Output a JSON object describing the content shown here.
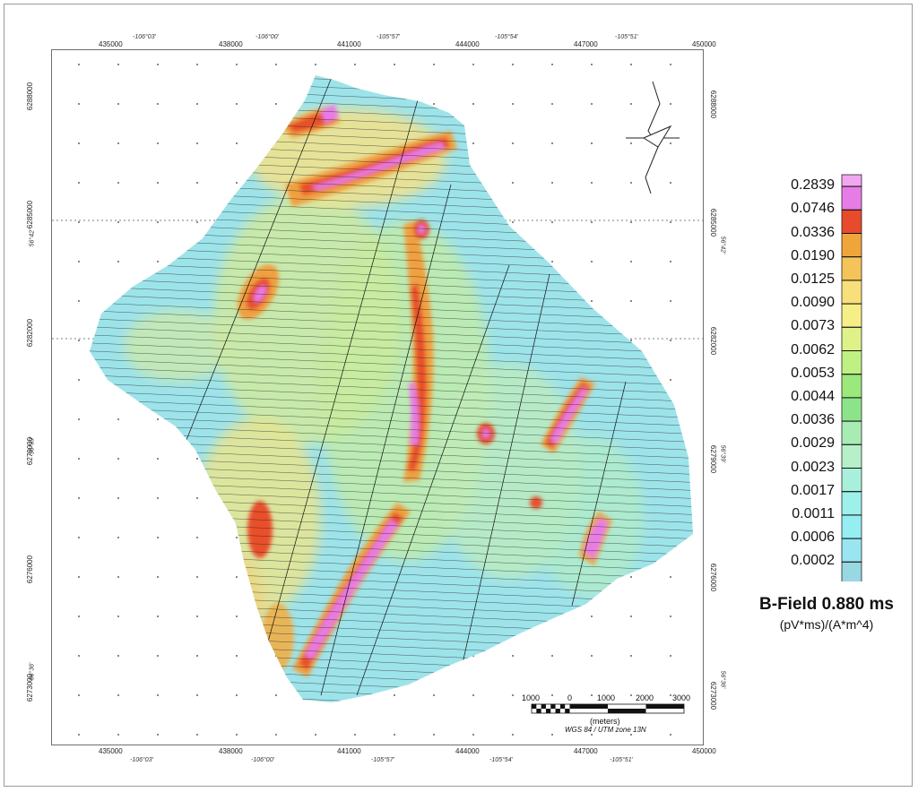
{
  "frame": {
    "background": "#ffffff"
  },
  "axes": {
    "utm_easting": [
      "435000",
      "438000",
      "441000",
      "444000",
      "447000",
      "450000"
    ],
    "longitude": [
      "-106°03'",
      "-106°00'",
      "-105°57'",
      "-105°54'",
      "-105°51'"
    ],
    "utm_northing": [
      "6288000",
      "6285000",
      "6282000",
      "6279000",
      "6276000",
      "6273000"
    ],
    "latitude": [
      "56°42'",
      "56°39'",
      "56°36'"
    ]
  },
  "legend": {
    "title": "B-Field 0.880 ms",
    "units": "(pV*ms)/(A*m^4)",
    "classes": [
      {
        "label": "0.2839",
        "color": "#e87ce6"
      },
      {
        "label": "0.0746",
        "color": "#e84a2c"
      },
      {
        "label": "0.0336",
        "color": "#f0a53a"
      },
      {
        "label": "0.0190",
        "color": "#f5c458"
      },
      {
        "label": "0.0125",
        "color": "#f8df7a"
      },
      {
        "label": "0.0090",
        "color": "#f5ef86"
      },
      {
        "label": "0.0073",
        "color": "#dff28a"
      },
      {
        "label": "0.0062",
        "color": "#bff084"
      },
      {
        "label": "0.0053",
        "color": "#9be87c"
      },
      {
        "label": "0.0044",
        "color": "#8ce48a"
      },
      {
        "label": "0.0036",
        "color": "#a8ecb4"
      },
      {
        "label": "0.0029",
        "color": "#b6f0c8"
      },
      {
        "label": "0.0023",
        "color": "#a8f0dc"
      },
      {
        "label": "0.0017",
        "color": "#9ef0ea"
      },
      {
        "label": "0.0011",
        "color": "#94eef2"
      },
      {
        "label": "0.0006",
        "color": "#9ae6f0"
      },
      {
        "label": "0.0002",
        "color": "#98d8e2"
      }
    ],
    "top_swatch_color": "#f2a6f0"
  },
  "scale_bar": {
    "labels": [
      "1000",
      "0",
      "1000",
      "2000",
      "3000"
    ],
    "unit": "(meters)",
    "projection": "WGS 84 / UTM zone 13N"
  },
  "north_arrow": {
    "icon": "north-arrow-icon"
  }
}
